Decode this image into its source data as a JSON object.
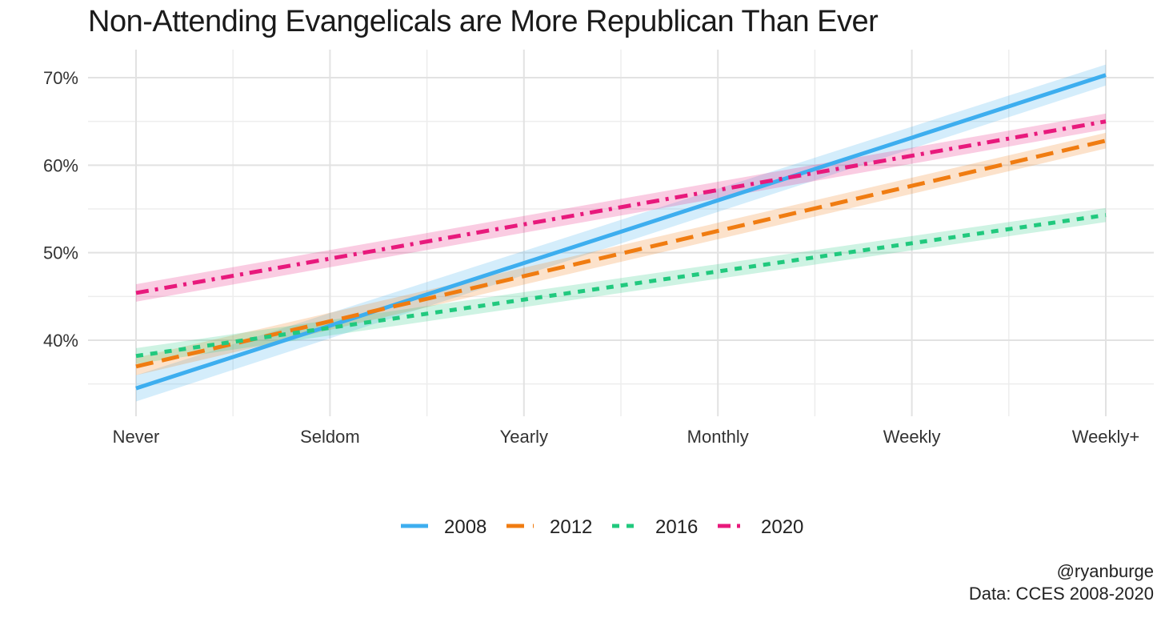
{
  "chart_data": {
    "type": "line",
    "title": "Non-Attending Evangelicals are More Republican Than Ever",
    "xlabel": "",
    "ylabel": "",
    "categories": [
      "Never",
      "Seldom",
      "Yearly",
      "Monthly",
      "Weekly",
      "Weekly+"
    ],
    "y_ticks": [
      {
        "value": 40,
        "label": "40%"
      },
      {
        "value": 50,
        "label": "50%"
      },
      {
        "value": 60,
        "label": "60%"
      },
      {
        "value": 70,
        "label": "70%"
      }
    ],
    "ylim": [
      31,
      73
    ],
    "grid": true,
    "legend_position": "bottom",
    "series": [
      {
        "name": "2008",
        "color": "#3DAEEF",
        "dash": "solid",
        "start": 34.5,
        "end": 70.3,
        "band": 1.2,
        "band_start": 1.5
      },
      {
        "name": "2012",
        "color": "#F07C11",
        "dash": "long-dash",
        "start": 37.0,
        "end": 62.8,
        "band": 0.9,
        "band_start": 1.0
      },
      {
        "name": "2016",
        "color": "#21C97E",
        "dash": "short-dash",
        "start": 38.2,
        "end": 54.3,
        "band": 0.8,
        "band_start": 0.9
      },
      {
        "name": "2020",
        "color": "#E8197C",
        "dash": "dash-dot",
        "start": 45.4,
        "end": 65.0,
        "band": 0.9,
        "band_start": 1.0
      }
    ]
  },
  "caption": {
    "line1": "@ryanburge",
    "line2": "Data: CCES 2008-2020"
  }
}
